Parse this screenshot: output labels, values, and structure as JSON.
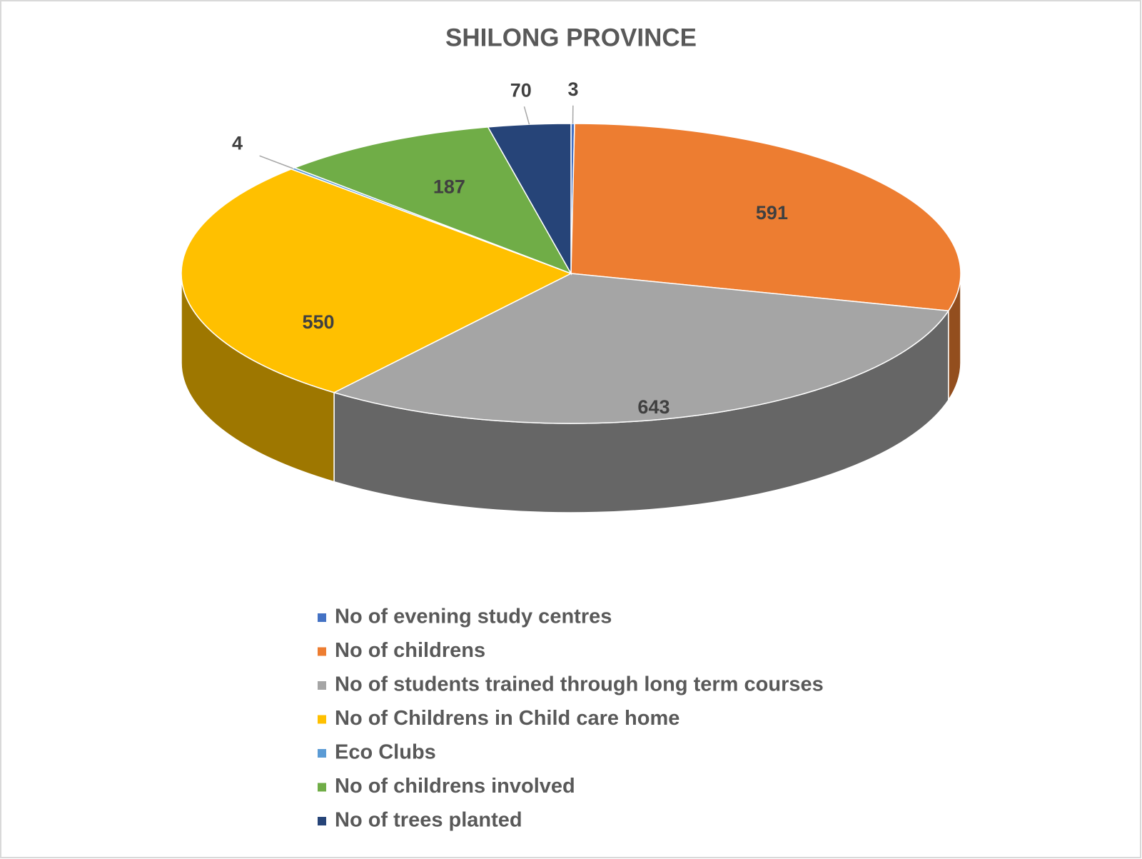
{
  "chart_data": {
    "type": "pie3d",
    "title": "SHILONG PROVINCE",
    "categories": [
      "No of evening study centres",
      "No  of childrens",
      "No  of students trained through long term courses",
      "No of Childrens in Child care home",
      "Eco Clubs",
      "No of childrens involved",
      "No of trees planted"
    ],
    "values": [
      3,
      591,
      643,
      550,
      4,
      187,
      70
    ],
    "colors": [
      "#4472c4",
      "#ed7d31",
      "#a5a5a5",
      "#ffc000",
      "#5b9bd5",
      "#70ad47",
      "#264478"
    ],
    "legend": "bottom"
  }
}
